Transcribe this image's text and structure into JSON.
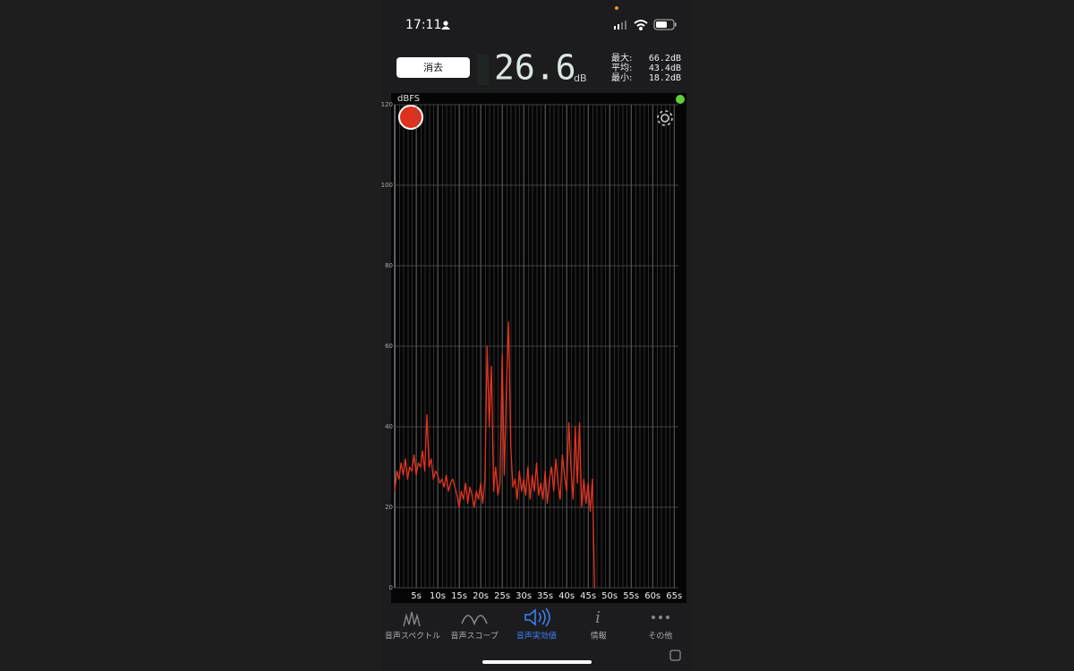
{
  "status": {
    "time": "17:11"
  },
  "header": {
    "clear_button": "消去",
    "level": "26.6",
    "unit": "dB",
    "stats": [
      {
        "label": "最大:",
        "value": "66.2dB"
      },
      {
        "label": "平均:",
        "value": "43.4dB"
      },
      {
        "label": "最小:",
        "value": "18.2dB"
      }
    ]
  },
  "chart_data": {
    "type": "line",
    "y_label": "dBFS",
    "series": [
      {
        "name": null,
        "color": "#e8321e",
        "x": [
          0,
          0.5,
          1,
          1.5,
          2,
          2.5,
          3,
          3.5,
          4,
          4.5,
          5,
          5.5,
          6,
          6.5,
          7,
          7.5,
          8,
          8.5,
          9,
          9.5,
          10,
          10.5,
          11,
          11.5,
          12,
          12.5,
          13,
          13.5,
          14,
          14.5,
          15,
          15.5,
          16,
          16.5,
          17,
          17.5,
          18,
          18.5,
          19,
          19.5,
          20,
          20.5,
          21,
          21.5,
          22,
          22.5,
          23,
          23.5,
          24,
          24.5,
          25,
          25.5,
          26,
          26.5,
          27,
          27.5,
          28,
          28.5,
          29,
          29.5,
          30,
          30.5,
          31,
          31.5,
          32,
          32.5,
          33,
          33.5,
          34,
          34.5,
          35,
          35.5,
          36,
          36.5,
          37,
          37.5,
          38,
          38.5,
          39,
          39.5,
          40,
          40.5,
          41,
          41.5,
          42,
          42.5,
          43,
          43.5,
          44,
          44.5,
          45,
          45.5,
          46,
          46.5
        ],
        "values": [
          24,
          29,
          27,
          31,
          28,
          32,
          27,
          30,
          29,
          33,
          28,
          31,
          30,
          34,
          29,
          43,
          30,
          32,
          27,
          29,
          28,
          26,
          27,
          25,
          28,
          24,
          26,
          27,
          25,
          23,
          20,
          24,
          22,
          26,
          21,
          25,
          23,
          20,
          24,
          22,
          26,
          21,
          27,
          60,
          40,
          55,
          24,
          30,
          23,
          26,
          58,
          28,
          50,
          66,
          35,
          25,
          27,
          22,
          29,
          24,
          27,
          23,
          30,
          22,
          28,
          24,
          31,
          23,
          26,
          22,
          29,
          21,
          27,
          30,
          24,
          32,
          26,
          22,
          33,
          28,
          24,
          41,
          30,
          22,
          40,
          26,
          41,
          20,
          27,
          21,
          26,
          19,
          27,
          0
        ]
      }
    ],
    "xlim": [
      0,
      66
    ],
    "ylim": [
      0,
      120
    ],
    "xticks": [
      {
        "value": 5,
        "label": "5s"
      },
      {
        "value": 10,
        "label": "10s"
      },
      {
        "value": 15,
        "label": "15s"
      },
      {
        "value": 20,
        "label": "20s"
      },
      {
        "value": 25,
        "label": "25s"
      },
      {
        "value": 30,
        "label": "30s"
      },
      {
        "value": 35,
        "label": "35s"
      },
      {
        "value": 40,
        "label": "40s"
      },
      {
        "value": 45,
        "label": "45s"
      },
      {
        "value": 50,
        "label": "50s"
      },
      {
        "value": 55,
        "label": "55s"
      },
      {
        "value": 60,
        "label": "60s"
      },
      {
        "value": 65,
        "label": "65s"
      }
    ],
    "yticks": [
      0,
      20,
      40,
      60,
      80,
      100,
      120
    ],
    "grid": true
  },
  "tabs": [
    {
      "label": "音声スペクトル"
    },
    {
      "label": "音声スコープ"
    },
    {
      "label": "音声実効値",
      "active": true
    },
    {
      "label": "情報"
    },
    {
      "label": "その他"
    }
  ]
}
